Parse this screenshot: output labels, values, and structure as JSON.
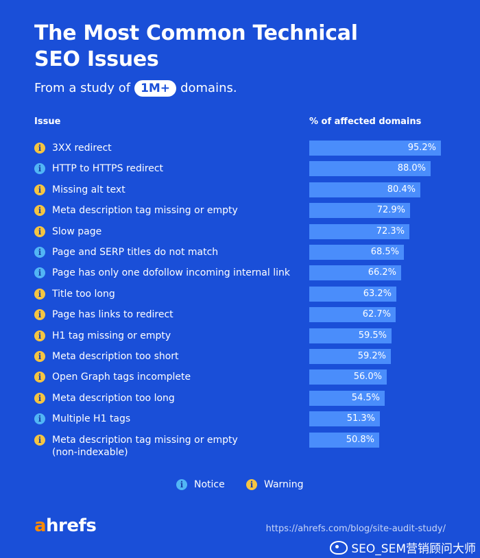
{
  "title": "The Most Common Technical SEO Issues",
  "subtitle": {
    "prefix": "From a study of",
    "highlight": "1M+",
    "suffix": "domains."
  },
  "columns": {
    "issue": "Issue",
    "percent": "% of affected domains"
  },
  "colors": {
    "background": "#1a4fd8",
    "bar": "#4a8dfb",
    "notice": "#52b6f5",
    "warning": "#f5c542",
    "brand_accent": "#ff8a00"
  },
  "icons": {
    "notice": "info-icon-blue",
    "warning": "info-icon-yellow"
  },
  "chart_data": {
    "type": "bar",
    "orientation": "horizontal",
    "title": "The Most Common Technical SEO Issues",
    "xlabel": "% of affected domains",
    "ylabel": "Issue",
    "xlim": [
      0,
      100
    ],
    "categories": [
      "3XX redirect",
      "HTTP to HTTPS redirect",
      "Missing alt text",
      "Meta description tag missing or empty",
      "Slow page",
      "Page and SERP titles do not match",
      "Page has only one dofollow incoming internal link",
      "Title too long",
      "Page has links to redirect",
      "H1 tag missing or empty",
      "Meta description too short",
      "Open Graph tags incomplete",
      "Meta description too long",
      "Multiple H1 tags",
      "Meta description tag missing or empty (non-indexable)"
    ],
    "values": [
      95.2,
      88.0,
      80.4,
      72.9,
      72.3,
      68.5,
      66.2,
      63.2,
      62.7,
      59.5,
      59.2,
      56.0,
      54.5,
      51.3,
      50.8
    ],
    "value_labels": [
      "95.2%",
      "88.0%",
      "80.4%",
      "72.9%",
      "72.3%",
      "68.5%",
      "66.2%",
      "63.2%",
      "62.7%",
      "59.5%",
      "59.2%",
      "56.0%",
      "54.5%",
      "51.3%",
      "50.8%"
    ],
    "types": [
      "Warning",
      "Notice",
      "Warning",
      "Warning",
      "Warning",
      "Notice",
      "Notice",
      "Warning",
      "Warning",
      "Warning",
      "Warning",
      "Warning",
      "Warning",
      "Notice",
      "Warning"
    ],
    "label_lines": [
      [
        "3XX redirect"
      ],
      [
        "HTTP to HTTPS redirect"
      ],
      [
        "Missing alt text"
      ],
      [
        "Meta description tag missing or empty"
      ],
      [
        "Slow page"
      ],
      [
        "Page and SERP titles do not match"
      ],
      [
        "Page has only one dofollow incoming internal link"
      ],
      [
        "Title too long"
      ],
      [
        "Page has links to redirect"
      ],
      [
        "H1 tag missing or empty"
      ],
      [
        "Meta description too short"
      ],
      [
        "Open Graph tags incomplete"
      ],
      [
        "Meta description too long"
      ],
      [
        "Multiple H1 tags"
      ],
      [
        "Meta description tag missing or empty",
        "(non-indexable)"
      ]
    ],
    "grid": false,
    "legend": "bottom-center"
  },
  "legend": {
    "notice": "Notice",
    "warning": "Warning"
  },
  "footer": {
    "logo_accent": "a",
    "logo_rest": "hrefs",
    "url": "https://ahrefs.com/blog/site-audit-study/",
    "watermark": "SEO_SEM营销顾问大师"
  }
}
